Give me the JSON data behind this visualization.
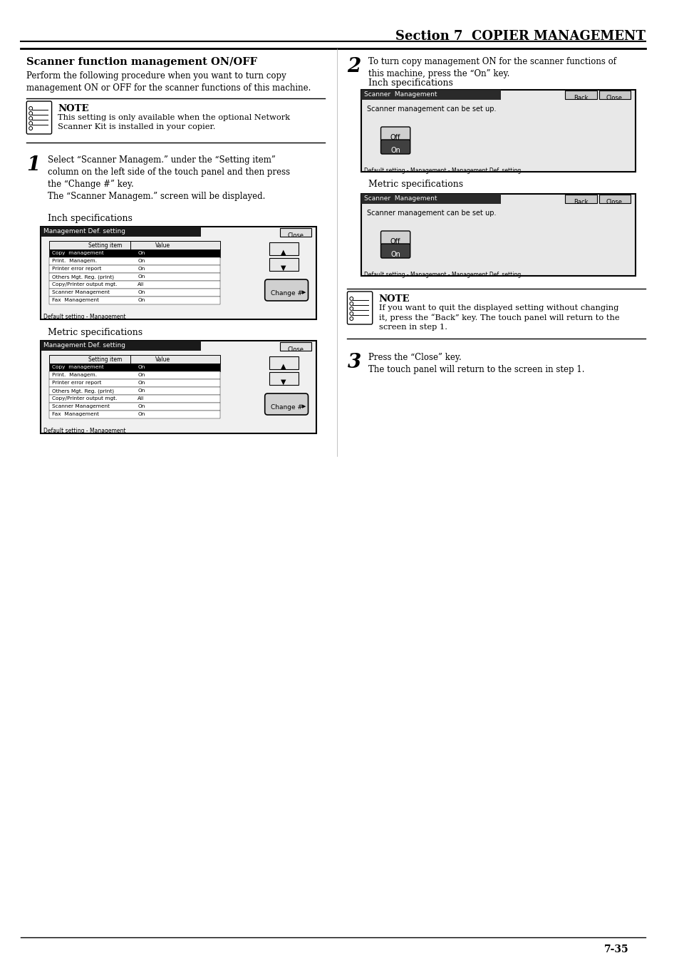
{
  "page_title": "Section 7  COPIER MANAGEMENT",
  "section_heading": "Scanner function management ON/OFF",
  "intro_text": "Perform the following procedure when you want to turn copy\nmanagement ON or OFF for the scanner functions of this machine.",
  "note1_title": "NOTE",
  "note1_text": "This setting is only available when the optional Network\nScanner Kit is installed in your copier.",
  "step1_num": "1",
  "step1_text": "Select “Scanner Managem.” under the “Setting item”\ncolumn on the left side of the touch panel and then press\nthe “Change #” key.\nThe “Scanner Managem.” screen will be displayed.",
  "inch_spec_label": "Inch specifications",
  "metric_spec_label": "Metric specifications",
  "table_header": [
    "Setting item",
    "Value"
  ],
  "table_rows": [
    [
      "Copy  management",
      "On"
    ],
    [
      "Print.  Managem.",
      "On"
    ],
    [
      "Printer error report",
      "On"
    ],
    [
      "Others Mgt. Reg. (print)",
      "On"
    ],
    [
      "Copy/Printer output mgt.",
      "All"
    ],
    [
      "Scanner Management",
      "On"
    ],
    [
      "Fax  Management",
      "On"
    ]
  ],
  "table_footer": "Default setting - Management",
  "step2_num": "2",
  "step2_text": "To turn copy management ON for the scanner functions of\nthis machine, press the “On” key.",
  "scanner_screen_title": "Scanner  Management",
  "scanner_screen_text": "Scanner management can be set up.",
  "scanner_buttons": [
    "Off",
    "On"
  ],
  "scanner_footer": "Default setting - Management - Management Def. setting",
  "note2_title": "NOTE",
  "note2_text": "If you want to quit the displayed setting without changing\nit, press the “Back” key. The touch panel will return to the\nscreen in step 1.",
  "step3_num": "3",
  "step3_text": "Press the “Close” key.\nThe touch panel will return to the screen in step 1.",
  "page_number": "7-35",
  "bg_color": "#ffffff",
  "text_color": "#000000",
  "table_header_bg": "#404040",
  "table_row_selected_bg": "#000000",
  "table_row_selected_fg": "#ffffff",
  "table_border_color": "#000000",
  "screen_bg": "#d0d0d0",
  "screen_title_bg": "#1a1a1a",
  "screen_title_fg": "#ffffff"
}
